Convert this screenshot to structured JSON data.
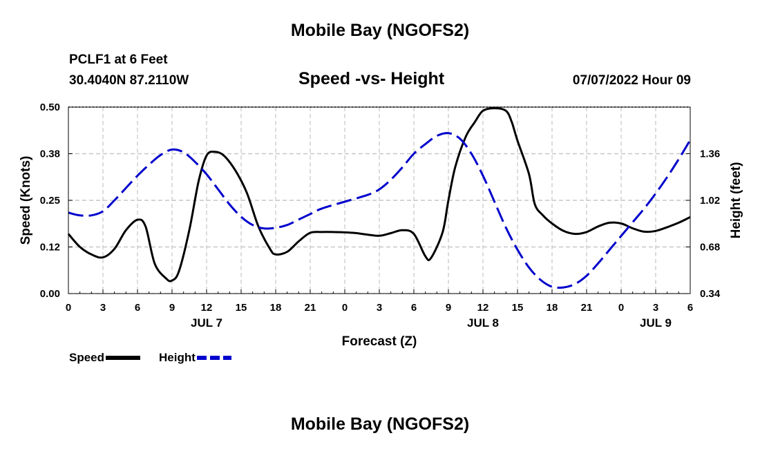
{
  "header": {
    "title": "Mobile Bay (NGOFS2)",
    "station": "PCLF1 at 6 Feet",
    "coords": "30.4040N  87.2110W",
    "subtitle": "Speed -vs- Height",
    "datetime": "07/07/2022 Hour 09"
  },
  "footer": {
    "title": "Mobile Bay (NGOFS2)"
  },
  "chart_data": {
    "type": "line",
    "xlabel": "Forecast (Z)",
    "ylabel": "Speed (Knots)",
    "y2label": "Height (feet)",
    "x_unit": "hours",
    "xlim": [
      0,
      54
    ],
    "ylim": [
      0,
      0.5
    ],
    "y2lim": [
      0.34,
      1.7
    ],
    "yticks": [
      "0.00",
      "0.12",
      "0.25",
      "0.38",
      "0.50"
    ],
    "y2ticks": [
      "0.34",
      "0.68",
      "1.02",
      "1.36"
    ],
    "xticks": [
      "0",
      "3",
      "6",
      "9",
      "12",
      "15",
      "18",
      "21",
      "0",
      "3",
      "6",
      "9",
      "12",
      "15",
      "18",
      "21",
      "0",
      "3",
      "6"
    ],
    "day_labels": [
      {
        "x": 12,
        "label": "JUL 7"
      },
      {
        "x": 36,
        "label": "JUL 8"
      },
      {
        "x": 51,
        "label": "JUL 9"
      }
    ],
    "grid": true,
    "legend_position": "bottom-left",
    "series": [
      {
        "name": "Speed",
        "axis": "left",
        "color": "#000000",
        "style": "solid",
        "x": [
          0,
          1,
          2,
          3,
          4,
          5,
          6,
          6.7,
          7.5,
          8.5,
          9,
          9.6,
          10.5,
          11.3,
          12,
          12.7,
          13.5,
          14.5,
          15.5,
          16.5,
          17.5,
          18,
          19,
          20,
          21,
          22,
          23,
          24,
          25,
          26,
          27,
          28,
          29,
          30,
          31,
          31.5,
          32.5,
          33,
          33.6,
          34.5,
          35.3,
          36,
          37,
          38,
          38.5,
          39,
          40,
          40.5,
          41.2,
          42,
          43,
          44,
          45,
          46,
          47,
          48,
          49,
          50,
          51,
          52,
          53,
          54
        ],
        "y": [
          0.16,
          0.125,
          0.105,
          0.097,
          0.12,
          0.17,
          0.198,
          0.18,
          0.08,
          0.04,
          0.035,
          0.06,
          0.17,
          0.3,
          0.37,
          0.38,
          0.37,
          0.33,
          0.27,
          0.18,
          0.12,
          0.105,
          0.112,
          0.14,
          0.163,
          0.165,
          0.165,
          0.164,
          0.162,
          0.158,
          0.155,
          0.162,
          0.17,
          0.16,
          0.1,
          0.096,
          0.165,
          0.25,
          0.34,
          0.42,
          0.46,
          0.49,
          0.497,
          0.49,
          0.46,
          0.41,
          0.32,
          0.24,
          0.21,
          0.188,
          0.168,
          0.16,
          0.165,
          0.18,
          0.19,
          0.188,
          0.175,
          0.166,
          0.168,
          0.178,
          0.19,
          0.205
        ]
      },
      {
        "name": "Height",
        "axis": "right",
        "color": "#0000cc",
        "style": "dashed",
        "x": [
          0,
          1,
          2,
          3,
          4,
          5,
          6,
          7,
          8,
          9,
          10,
          11,
          12,
          13,
          14,
          15,
          16,
          17,
          18,
          19,
          20,
          21,
          22,
          24,
          26,
          27,
          28,
          29,
          30,
          31,
          32,
          33,
          34,
          35,
          36,
          37,
          38,
          39,
          40,
          41,
          42,
          43,
          44,
          45,
          46,
          47,
          48,
          49,
          50,
          51,
          52,
          53,
          54
        ],
        "y": [
          0.93,
          0.91,
          0.91,
          0.94,
          1.02,
          1.11,
          1.2,
          1.28,
          1.35,
          1.39,
          1.37,
          1.3,
          1.21,
          1.1,
          0.99,
          0.9,
          0.84,
          0.815,
          0.82,
          0.84,
          0.88,
          0.92,
          0.96,
          1.01,
          1.06,
          1.1,
          1.17,
          1.26,
          1.36,
          1.43,
          1.49,
          1.51,
          1.47,
          1.36,
          1.2,
          1.01,
          0.82,
          0.66,
          0.53,
          0.44,
          0.39,
          0.385,
          0.41,
          0.47,
          0.56,
          0.66,
          0.76,
          0.86,
          0.96,
          1.07,
          1.19,
          1.32,
          1.46
        ]
      }
    ]
  }
}
